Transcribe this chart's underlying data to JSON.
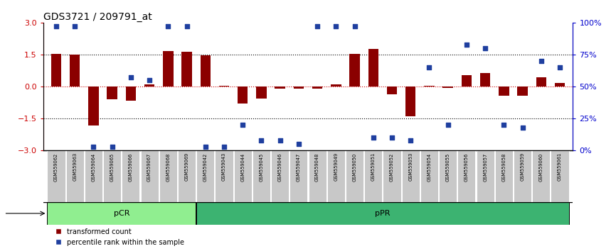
{
  "title": "GDS3721 / 209791_at",
  "samples": [
    "GSM559062",
    "GSM559063",
    "GSM559064",
    "GSM559065",
    "GSM559066",
    "GSM559067",
    "GSM559068",
    "GSM559069",
    "GSM559042",
    "GSM559043",
    "GSM559044",
    "GSM559045",
    "GSM559046",
    "GSM559047",
    "GSM559048",
    "GSM559049",
    "GSM559050",
    "GSM559051",
    "GSM559052",
    "GSM559053",
    "GSM559054",
    "GSM559055",
    "GSM559056",
    "GSM559057",
    "GSM559058",
    "GSM559059",
    "GSM559060",
    "GSM559061"
  ],
  "transformed_count": [
    1.52,
    1.5,
    -1.82,
    -0.6,
    -0.65,
    0.12,
    1.65,
    1.62,
    1.48,
    0.05,
    -0.8,
    -0.55,
    -0.1,
    -0.08,
    -0.1,
    0.1,
    1.52,
    1.78,
    -0.35,
    -1.4,
    0.05,
    -0.05,
    0.55,
    0.62,
    -0.42,
    -0.42,
    0.42,
    0.18
  ],
  "percentile_rank": [
    97,
    97,
    3,
    3,
    57,
    55,
    97,
    97,
    3,
    3,
    20,
    8,
    8,
    5,
    97,
    97,
    97,
    10,
    10,
    8,
    65,
    20,
    83,
    80,
    20,
    18,
    70,
    65
  ],
  "pcr_count": 8,
  "ppr_count": 20,
  "bar_color": "#8B0000",
  "dot_color": "#1F3F9F",
  "pcr_color": "#90EE90",
  "ppr_color": "#3CB371",
  "sample_box_color": "#C8C8C8",
  "ylim_left": [
    -3,
    3
  ],
  "yticks_left": [
    -3,
    -1.5,
    0,
    1.5,
    3
  ],
  "yticks_right": [
    0,
    25,
    50,
    75,
    100
  ],
  "ylabel_left_color": "#CC0000",
  "ylabel_right_color": "#0000CC",
  "dotted_line_values": [
    1.5,
    -1.5
  ],
  "zero_line_color": "#CC0000",
  "legend_labels": [
    "transformed count",
    "percentile rank within the sample"
  ]
}
